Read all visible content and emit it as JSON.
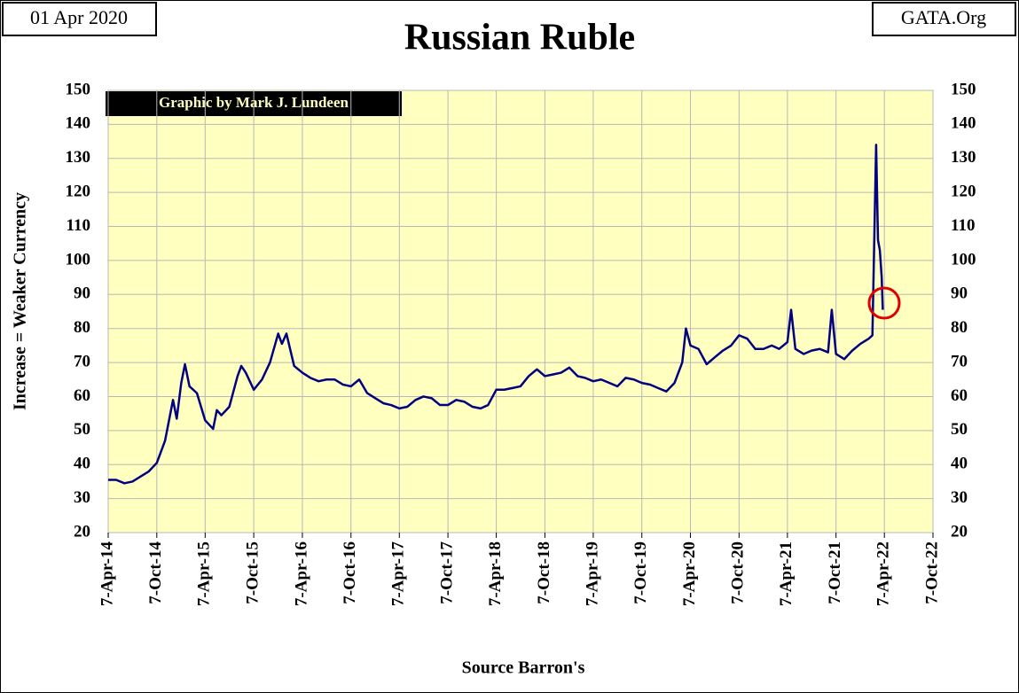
{
  "chart_data": {
    "type": "line",
    "title": "Russian Ruble",
    "date": "01 Apr 2020",
    "source_site": "GATA.Org",
    "annotation": "Graphic by Mark J. Lundeen",
    "x_label": "Source Barron's",
    "y_label": "Increase = Weaker Currency",
    "color": "#000080",
    "grid": true,
    "x": [
      "2014-04-07",
      "2014-05-07",
      "2014-06-07",
      "2014-07-07",
      "2014-08-07",
      "2014-09-07",
      "2014-10-07",
      "2014-11-07",
      "2014-12-07",
      "2014-12-21",
      "2015-01-07",
      "2015-01-21",
      "2015-02-07",
      "2015-03-07",
      "2015-04-07",
      "2015-05-07",
      "2015-05-21",
      "2015-06-07",
      "2015-07-07",
      "2015-08-07",
      "2015-08-21",
      "2015-09-07",
      "2015-10-07",
      "2015-11-07",
      "2015-12-07",
      "2016-01-07",
      "2016-01-21",
      "2016-02-07",
      "2016-03-07",
      "2016-04-07",
      "2016-05-07",
      "2016-06-07",
      "2016-07-07",
      "2016-08-07",
      "2016-09-07",
      "2016-10-07",
      "2016-11-07",
      "2016-12-07",
      "2017-01-07",
      "2017-02-07",
      "2017-03-07",
      "2017-04-07",
      "2017-05-07",
      "2017-06-07",
      "2017-07-07",
      "2017-08-07",
      "2017-09-07",
      "2017-10-07",
      "2017-11-07",
      "2017-12-07",
      "2018-01-07",
      "2018-02-07",
      "2018-03-07",
      "2018-04-07",
      "2018-05-07",
      "2018-06-07",
      "2018-07-07",
      "2018-08-07",
      "2018-09-07",
      "2018-10-07",
      "2018-11-07",
      "2018-12-07",
      "2019-01-07",
      "2019-02-07",
      "2019-03-07",
      "2019-04-07",
      "2019-05-07",
      "2019-06-07",
      "2019-07-07",
      "2019-08-07",
      "2019-09-07",
      "2019-10-07",
      "2019-11-07",
      "2019-12-07",
      "2020-01-07",
      "2020-02-07",
      "2020-03-07",
      "2020-03-21",
      "2020-04-07",
      "2020-05-07",
      "2020-06-07",
      "2020-07-07",
      "2020-08-07",
      "2020-09-07",
      "2020-10-07",
      "2020-11-07",
      "2020-12-07",
      "2021-01-07",
      "2021-02-07",
      "2021-03-07",
      "2021-04-07",
      "2021-04-21",
      "2021-05-07",
      "2021-06-07",
      "2021-07-07",
      "2021-08-07",
      "2021-09-07",
      "2021-09-21",
      "2021-10-07",
      "2021-11-07",
      "2021-12-07",
      "2022-01-07",
      "2022-02-07",
      "2022-02-21",
      "2022-03-07",
      "2022-03-14",
      "2022-03-21",
      "2022-03-28",
      "2022-04-01"
    ],
    "values": [
      35.5,
      35.5,
      34.5,
      35,
      36.5,
      38,
      40.5,
      47,
      59,
      53.5,
      64,
      69.5,
      63,
      61,
      53,
      50.5,
      56,
      54.5,
      57,
      66,
      69,
      67,
      62,
      65,
      70,
      78.5,
      75.5,
      78.5,
      69,
      67,
      65.5,
      64.5,
      65,
      65,
      63.5,
      63,
      65,
      61,
      59.5,
      58,
      57.5,
      56.5,
      57,
      59,
      60,
      59.5,
      57.5,
      57.5,
      59,
      58.5,
      57,
      56.5,
      57.5,
      62,
      62,
      62.5,
      63,
      66,
      68,
      66,
      66.5,
      67,
      68.5,
      66,
      65.5,
      64.5,
      65,
      64,
      63,
      65.5,
      65,
      64,
      63.5,
      62.5,
      61.5,
      64,
      70,
      80,
      75,
      74,
      69.5,
      71.5,
      73.5,
      75,
      78,
      77,
      74,
      74,
      75,
      74,
      76,
      85.5,
      74,
      72.5,
      73.5,
      74,
      73,
      85.5,
      72.5,
      71,
      73.5,
      75.5,
      77,
      78,
      134,
      106,
      103,
      95,
      85.5
    ],
    "xlim": [
      "2014-04-07",
      "2022-10-07"
    ],
    "xticks": [
      {
        "value": "2014-04-07",
        "label": "7-Apr-14"
      },
      {
        "value": "2014-10-07",
        "label": "7-Oct-14"
      },
      {
        "value": "2015-04-07",
        "label": "7-Apr-15"
      },
      {
        "value": "2015-10-07",
        "label": "7-Oct-15"
      },
      {
        "value": "2016-04-07",
        "label": "7-Apr-16"
      },
      {
        "value": "2016-10-07",
        "label": "7-Oct-16"
      },
      {
        "value": "2017-04-07",
        "label": "7-Apr-17"
      },
      {
        "value": "2017-10-07",
        "label": "7-Oct-17"
      },
      {
        "value": "2018-04-07",
        "label": "7-Apr-18"
      },
      {
        "value": "2018-10-07",
        "label": "7-Oct-18"
      },
      {
        "value": "2019-04-07",
        "label": "7-Apr-19"
      },
      {
        "value": "2019-10-07",
        "label": "7-Oct-19"
      },
      {
        "value": "2020-04-07",
        "label": "7-Apr-20"
      },
      {
        "value": "2020-10-07",
        "label": "7-Oct-20"
      },
      {
        "value": "2021-04-07",
        "label": "7-Apr-21"
      },
      {
        "value": "2021-10-07",
        "label": "7-Oct-21"
      },
      {
        "value": "2022-04-07",
        "label": "7-Apr-22"
      },
      {
        "value": "2022-10-07",
        "label": "7-Oct-22"
      }
    ],
    "ylim": [
      20,
      150
    ],
    "yticks": [
      20,
      30,
      40,
      50,
      60,
      70,
      80,
      90,
      100,
      110,
      120,
      130,
      140,
      150
    ]
  }
}
